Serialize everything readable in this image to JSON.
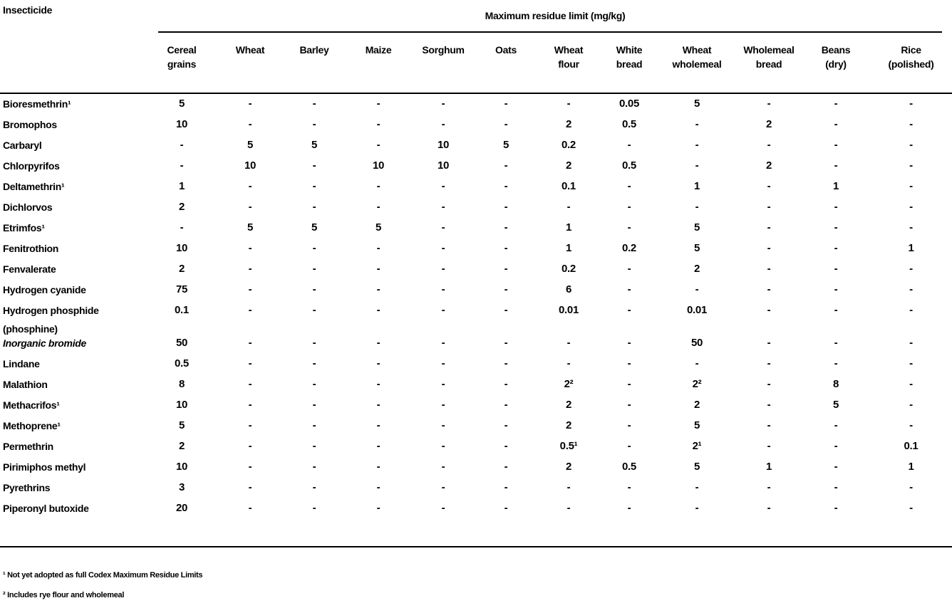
{
  "title": "Insecticide",
  "group_header": "Maximum residue limit (mg/kg)",
  "columns": [
    [
      "Cereal",
      "grains"
    ],
    [
      "Wheat",
      ""
    ],
    [
      "Barley",
      ""
    ],
    [
      "Maize",
      ""
    ],
    [
      "Sorghum",
      ""
    ],
    [
      "Oats",
      ""
    ],
    [
      "Wheat",
      "flour"
    ],
    [
      "White",
      "bread"
    ],
    [
      "Wheat",
      "wholemeal"
    ],
    [
      "Wholemeal",
      "bread"
    ],
    [
      "Beans",
      "(dry)"
    ],
    [
      "Rice",
      "(polished)"
    ]
  ],
  "rows": [
    {
      "name": "Bioresmethrin¹",
      "values": [
        "5",
        "-",
        "-",
        "-",
        "-",
        "-",
        "-",
        "0.05",
        "5",
        "-",
        "-",
        "-"
      ]
    },
    {
      "name": "Bromophos",
      "values": [
        "10",
        "-",
        "-",
        "-",
        "-",
        "-",
        "2",
        "0.5",
        "-",
        "2",
        "-",
        "-"
      ]
    },
    {
      "name": "Carbaryl",
      "values": [
        "-",
        "5",
        "5",
        "-",
        "10",
        "5",
        "0.2",
        "-",
        "-",
        "-",
        "-",
        "-"
      ]
    },
    {
      "name": "Chlorpyrifos",
      "values": [
        "-",
        "10",
        "-",
        "10",
        "10",
        "-",
        "2",
        "0.5",
        "-",
        "2",
        "-",
        "-"
      ]
    },
    {
      "name": "Deltamethrin¹",
      "values": [
        "1",
        "-",
        "-",
        "-",
        "-",
        "-",
        "0.1",
        "-",
        "1",
        "-",
        "1",
        "-"
      ]
    },
    {
      "name": "Dichlorvos",
      "values": [
        "2",
        "-",
        "-",
        "-",
        "-",
        "-",
        "-",
        "-",
        "-",
        "-",
        "-",
        "-"
      ]
    },
    {
      "name": "Etrimfos¹",
      "values": [
        "-",
        "5",
        "5",
        "5",
        "-",
        "-",
        "1",
        "-",
        "5",
        "-",
        "-",
        "-"
      ]
    },
    {
      "name": "Fenitrothion",
      "values": [
        "10",
        "-",
        "-",
        "-",
        "-",
        "-",
        "1",
        "0.2",
        "5",
        "-",
        "-",
        "1"
      ]
    },
    {
      "name": "Fenvalerate",
      "values": [
        "2",
        "-",
        "-",
        "-",
        "-",
        "-",
        "0.2",
        "-",
        "2",
        "-",
        "-",
        "-"
      ]
    },
    {
      "name": "Hydrogen cyanide",
      "values": [
        "75",
        "-",
        "-",
        "-",
        "-",
        "-",
        "6",
        "-",
        "-",
        "-",
        "-",
        "-"
      ]
    },
    {
      "name": "Hydrogen phosphide",
      "name2": "(phosphine)",
      "values": [
        "0.1",
        "-",
        "-",
        "-",
        "-",
        "-",
        "0.01",
        "-",
        "0.01",
        "-",
        "-",
        "-"
      ]
    },
    {
      "name": "Inorganic bromide",
      "values": [
        "50",
        "-",
        "-",
        "-",
        "-",
        "-",
        "-",
        "-",
        "50",
        "-",
        "-",
        "-"
      ]
    },
    {
      "name": "Lindane",
      "values": [
        "0.5",
        "-",
        "-",
        "-",
        "-",
        "-",
        "-",
        "-",
        "-",
        "-",
        "-",
        "-"
      ]
    },
    {
      "name": "Malathion",
      "values": [
        "8",
        "-",
        "-",
        "-",
        "-",
        "-",
        "2²",
        "-",
        "2²",
        "-",
        "8",
        "-"
      ]
    },
    {
      "name": "Methacrifos¹",
      "values": [
        "10",
        "-",
        "-",
        "-",
        "-",
        "-",
        "2",
        "-",
        "2",
        "-",
        "5",
        "-"
      ]
    },
    {
      "name": "Methoprene¹",
      "values": [
        "5",
        "-",
        "-",
        "-",
        "-",
        "-",
        "2",
        "-",
        "5",
        "-",
        "-",
        "-"
      ]
    },
    {
      "name": "Permethrin",
      "values": [
        "2",
        "-",
        "-",
        "-",
        "-",
        "-",
        "0.5¹",
        "-",
        "2¹",
        "-",
        "-",
        "0.1"
      ]
    },
    {
      "name": "Pirimiphos methyl",
      "values": [
        "10",
        "-",
        "-",
        "-",
        "-",
        "-",
        "2",
        "0.5",
        "5",
        "1",
        "-",
        "1"
      ]
    },
    {
      "name": "Pyrethrins",
      "values": [
        "3",
        "-",
        "-",
        "-",
        "-",
        "-",
        "-",
        "-",
        "-",
        "-",
        "-",
        "-"
      ]
    },
    {
      "name": "Piperonyl butoxide",
      "values": [
        "20",
        "-",
        "-",
        "-",
        "-",
        "-",
        "-",
        "-",
        "-",
        "-",
        "-",
        "-"
      ]
    }
  ],
  "footnotes": [
    "¹ Not yet adopted as full Codex Maximum Residue Limits",
    "² Includes rye flour and wholemeal"
  ]
}
